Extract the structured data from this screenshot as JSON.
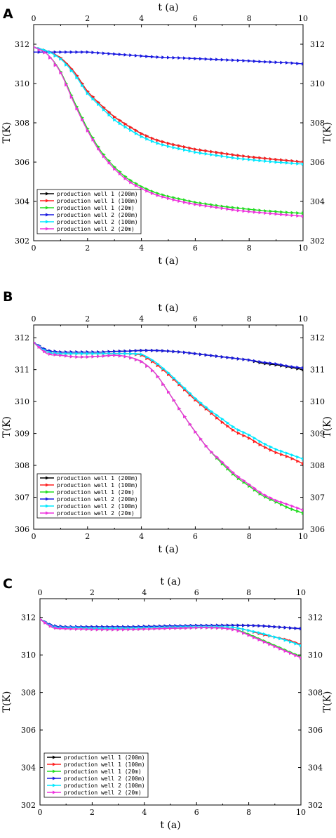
{
  "chart_data": [
    {
      "type": "line",
      "panel_label": "A",
      "xlabel": "t (a)",
      "xlabel_top": "t (a)",
      "ylabel": "T(K)",
      "ylabel_right": "T(K)",
      "xlim": [
        0,
        10
      ],
      "ylim": [
        302,
        313
      ],
      "xticks": [
        0,
        2,
        4,
        6,
        8,
        10
      ],
      "yticks": [
        302,
        304,
        306,
        308,
        310,
        312
      ],
      "grid": false,
      "legend_position": "bottom-left",
      "x": [
        0,
        0.5,
        1,
        1.5,
        2,
        2.5,
        3,
        3.5,
        4,
        4.5,
        5,
        5.5,
        6,
        6.5,
        7,
        7.5,
        8,
        8.5,
        9,
        9.5,
        10
      ],
      "series": [
        {
          "name": "production well 1 (200m)",
          "color": "#000000",
          "values": [
            311.85,
            311.65,
            311.3,
            310.6,
            309.6,
            308.9,
            308.3,
            307.85,
            307.45,
            307.15,
            306.95,
            306.8,
            306.65,
            306.55,
            306.45,
            306.35,
            306.27,
            306.2,
            306.13,
            306.07,
            306.0
          ]
        },
        {
          "name": "production well 1 (100m)",
          "color": "#ff2020",
          "values": [
            311.85,
            311.65,
            311.3,
            310.6,
            309.6,
            308.9,
            308.3,
            307.85,
            307.45,
            307.15,
            306.95,
            306.8,
            306.65,
            306.55,
            306.45,
            306.35,
            306.27,
            306.2,
            306.13,
            306.07,
            306.0
          ]
        },
        {
          "name": "production well 1 (20m)",
          "color": "#22dd22",
          "values": [
            311.85,
            311.5,
            310.6,
            309.1,
            307.7,
            306.55,
            305.75,
            305.15,
            304.75,
            304.45,
            304.25,
            304.1,
            303.95,
            303.85,
            303.75,
            303.67,
            303.6,
            303.53,
            303.48,
            303.43,
            303.4
          ]
        },
        {
          "name": "production well 2 (200m)",
          "color": "#1a1ae0",
          "values": [
            311.6,
            311.6,
            311.6,
            311.6,
            311.6,
            311.55,
            311.5,
            311.45,
            311.4,
            311.35,
            311.32,
            311.3,
            311.27,
            311.24,
            311.21,
            311.18,
            311.15,
            311.11,
            311.08,
            311.05,
            311.0
          ]
        },
        {
          "name": "production well 2 (100m)",
          "color": "#00e8ff",
          "values": [
            311.85,
            311.65,
            311.25,
            310.5,
            309.5,
            308.8,
            308.15,
            307.7,
            307.3,
            307.0,
            306.8,
            306.65,
            306.5,
            306.4,
            306.3,
            306.2,
            306.13,
            306.06,
            306.0,
            305.95,
            305.9
          ]
        },
        {
          "name": "production well 2 (20m)",
          "color": "#ee33dd",
          "values": [
            311.85,
            311.5,
            310.55,
            309.0,
            307.6,
            306.45,
            305.65,
            305.05,
            304.65,
            304.35,
            304.15,
            303.98,
            303.85,
            303.75,
            303.65,
            303.55,
            303.48,
            303.42,
            303.36,
            303.3,
            303.25
          ]
        }
      ]
    },
    {
      "type": "line",
      "panel_label": "B",
      "xlabel": "t (a)",
      "xlabel_top": "t (a)",
      "ylabel": "T(K)",
      "ylabel_right": "T(K)",
      "xlim": [
        0,
        10
      ],
      "ylim": [
        306,
        312.4
      ],
      "xticks": [
        0,
        2,
        4,
        6,
        8,
        10
      ],
      "yticks": [
        306,
        307,
        308,
        309,
        310,
        311,
        312
      ],
      "grid": false,
      "legend_position": "bottom-left",
      "x": [
        0,
        0.5,
        1,
        1.5,
        2,
        2.5,
        3,
        3.5,
        4,
        4.5,
        5,
        5.5,
        6,
        6.5,
        7,
        7.5,
        8,
        8.5,
        9,
        9.5,
        10
      ],
      "series": [
        {
          "name": "production well 1 (200m)",
          "color": "#000000",
          "values": [
            311.85,
            311.6,
            311.55,
            311.55,
            311.55,
            311.55,
            311.57,
            311.58,
            311.6,
            311.6,
            311.58,
            311.55,
            311.5,
            311.45,
            311.4,
            311.35,
            311.3,
            311.2,
            311.15,
            311.08,
            311.0
          ]
        },
        {
          "name": "production well 1 (100m)",
          "color": "#ff2020",
          "values": [
            311.85,
            311.55,
            311.5,
            311.5,
            311.5,
            311.5,
            311.5,
            311.5,
            311.45,
            311.2,
            310.85,
            310.45,
            310.05,
            309.7,
            309.35,
            309.05,
            308.85,
            308.6,
            308.4,
            308.25,
            308.05
          ]
        },
        {
          "name": "production well 1 (20m)",
          "color": "#22dd22",
          "values": [
            311.85,
            311.5,
            311.45,
            311.4,
            311.4,
            311.42,
            311.45,
            311.4,
            311.25,
            310.9,
            310.3,
            309.65,
            309.05,
            308.5,
            308.05,
            307.65,
            307.35,
            307.05,
            306.85,
            306.65,
            306.5
          ]
        },
        {
          "name": "production well 2 (200m)",
          "color": "#1a1ae0",
          "values": [
            311.85,
            311.6,
            311.55,
            311.55,
            311.55,
            311.55,
            311.57,
            311.58,
            311.6,
            311.6,
            311.58,
            311.55,
            311.5,
            311.45,
            311.4,
            311.35,
            311.3,
            311.23,
            311.18,
            311.1,
            311.05
          ]
        },
        {
          "name": "production well 2 (100m)",
          "color": "#00e8ff",
          "values": [
            311.85,
            311.55,
            311.5,
            311.5,
            311.5,
            311.5,
            311.5,
            311.5,
            311.48,
            311.25,
            310.9,
            310.5,
            310.1,
            309.75,
            309.45,
            309.15,
            308.95,
            308.7,
            308.5,
            308.35,
            308.2
          ]
        },
        {
          "name": "production well 2 (20m)",
          "color": "#ee33dd",
          "values": [
            311.85,
            311.5,
            311.45,
            311.4,
            311.4,
            311.42,
            311.45,
            311.4,
            311.25,
            310.9,
            310.3,
            309.65,
            309.05,
            308.5,
            308.1,
            307.7,
            307.4,
            307.1,
            306.9,
            306.75,
            306.6
          ]
        }
      ]
    },
    {
      "type": "line",
      "panel_label": "C",
      "xlabel": "t (a)",
      "xlabel_top": "t (a)",
      "ylabel": "T(K)",
      "ylabel_right": "T(K)",
      "xlim": [
        0,
        10
      ],
      "ylim": [
        302,
        313
      ],
      "xticks": [
        0,
        2,
        4,
        6,
        8,
        10
      ],
      "yticks": [
        302,
        304,
        306,
        308,
        310,
        312
      ],
      "grid": false,
      "legend_position": "bottom-left",
      "x": [
        0,
        0.5,
        1,
        1.5,
        2,
        2.5,
        3,
        3.5,
        4,
        4.5,
        5,
        5.5,
        6,
        6.5,
        7,
        7.5,
        8,
        8.5,
        9,
        9.5,
        10
      ],
      "series": [
        {
          "name": "production well 1 (200m)",
          "color": "#000000",
          "values": [
            311.9,
            311.55,
            311.5,
            311.5,
            311.5,
            311.5,
            311.5,
            311.5,
            311.52,
            311.53,
            311.55,
            311.55,
            311.57,
            311.57,
            311.58,
            311.58,
            311.57,
            311.55,
            311.5,
            311.45,
            311.4
          ]
        },
        {
          "name": "production well 1 (100m)",
          "color": "#ff2020",
          "values": [
            311.9,
            311.5,
            311.45,
            311.45,
            311.42,
            311.42,
            311.42,
            311.43,
            311.45,
            311.47,
            311.48,
            311.5,
            311.5,
            311.5,
            311.5,
            311.45,
            311.3,
            311.1,
            310.95,
            310.8,
            310.55
          ]
        },
        {
          "name": "production well 1 (20m)",
          "color": "#22dd22",
          "values": [
            311.9,
            311.45,
            311.4,
            311.38,
            311.36,
            311.35,
            311.35,
            311.36,
            311.38,
            311.4,
            311.42,
            311.43,
            311.45,
            311.45,
            311.43,
            311.35,
            311.1,
            310.8,
            310.5,
            310.2,
            309.9
          ]
        },
        {
          "name": "production well 2 (200m)",
          "color": "#1a1ae0",
          "values": [
            311.9,
            311.55,
            311.5,
            311.5,
            311.5,
            311.5,
            311.5,
            311.5,
            311.52,
            311.53,
            311.55,
            311.55,
            311.57,
            311.57,
            311.58,
            311.58,
            311.57,
            311.55,
            311.5,
            311.45,
            311.4
          ]
        },
        {
          "name": "production well 2 (100m)",
          "color": "#00e8ff",
          "values": [
            311.9,
            311.5,
            311.45,
            311.45,
            311.42,
            311.42,
            311.42,
            311.43,
            311.45,
            311.47,
            311.48,
            311.5,
            311.5,
            311.5,
            311.5,
            311.45,
            311.3,
            311.15,
            310.95,
            310.75,
            310.5
          ]
        },
        {
          "name": "production well 2 (20m)",
          "color": "#ee33dd",
          "values": [
            311.9,
            311.45,
            311.4,
            311.38,
            311.36,
            311.35,
            311.35,
            311.36,
            311.38,
            311.4,
            311.42,
            311.43,
            311.45,
            311.45,
            311.43,
            311.33,
            311.05,
            310.75,
            310.45,
            310.15,
            309.85
          ]
        }
      ]
    }
  ]
}
